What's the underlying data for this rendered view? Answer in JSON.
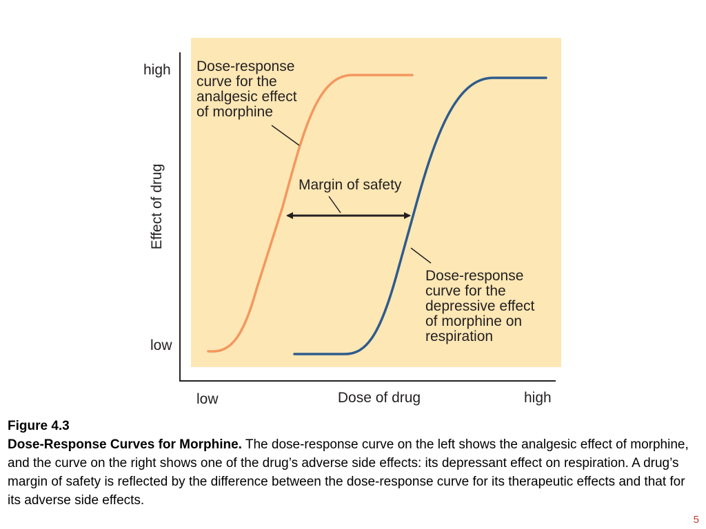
{
  "colors": {
    "panel_background": "#fce7b5",
    "analgesic_curve": "#f4975e",
    "depressive_curve": "#2f5b8c",
    "axis": "#231f20",
    "slide_number": "#c0392b"
  },
  "diagram": {
    "y_axis": {
      "label": "Effect of drug",
      "high_label": "high",
      "low_label": "low"
    },
    "x_axis": {
      "label": "Dose of drug",
      "low_label": "low",
      "high_label": "high"
    },
    "analgesic_label": [
      "Dose-response",
      "curve for the",
      "analgesic effect",
      "of morphine"
    ],
    "margin_label": "Margin of safety",
    "depressive_label": [
      "Dose-response",
      "curve for the",
      "depressive effect",
      "of morphine on",
      "respiration"
    ]
  },
  "caption": {
    "figure_label": "Figure 4.3",
    "title": "Dose-Response Curves for Morphine.",
    "body": " The dose-response curve on the left shows the analgesic effect of morphine, and the curve on the right shows one of the drug’s adverse side effects: its depressant effect on respiration.   A drug’s margin of safety is reflected by the difference between the dose-response curve for its therapeutic effects and that for its adverse side effects."
  },
  "slide_number": "5"
}
